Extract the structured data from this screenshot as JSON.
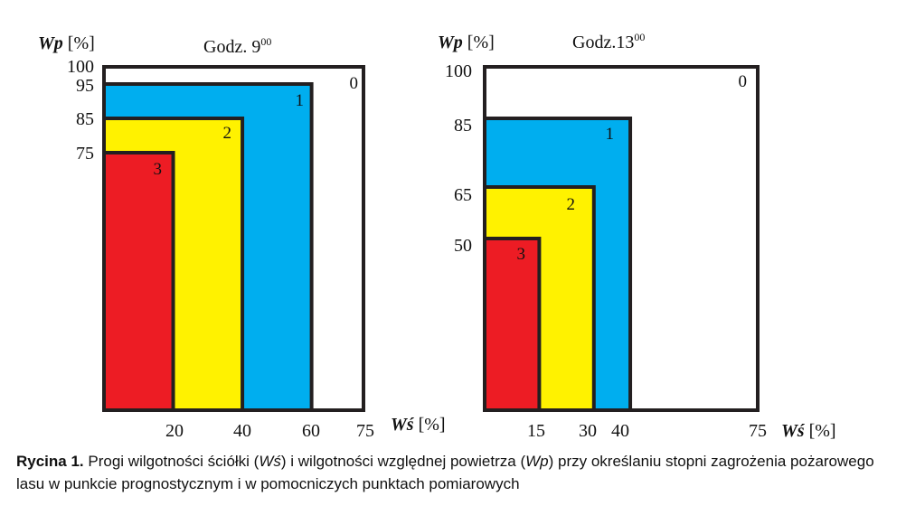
{
  "chart_data": [
    {
      "type": "area",
      "title": "Godz. 9",
      "title_sup": "00",
      "ylabel": {
        "symbol": "Wp",
        "unit": "[%]"
      },
      "xlabel": {
        "symbol": "Wś",
        "unit": "[%]"
      },
      "xlim": [
        0,
        75
      ],
      "ylim": [
        0,
        100
      ],
      "yticks": [
        "100",
        "95",
        "85",
        "75"
      ],
      "xticks": [
        "20",
        "40",
        "60",
        "75"
      ],
      "zones": [
        {
          "label": "0",
          "ws_max": 75,
          "wp_min": 100,
          "color": "#ffffff"
        },
        {
          "label": "1",
          "ws_max": 60,
          "wp_min": 95,
          "color": "#00aeef"
        },
        {
          "label": "2",
          "ws_max": 40,
          "wp_min": 85,
          "color": "#fff200"
        },
        {
          "label": "3",
          "ws_max": 20,
          "wp_min": 75,
          "color": "#ed1c24"
        }
      ]
    },
    {
      "type": "area",
      "title": "Godz.13",
      "title_sup": "00",
      "ylabel": {
        "symbol": "Wp",
        "unit": "[%]"
      },
      "xlabel": {
        "symbol": "Wś",
        "unit": "[%]"
      },
      "xlim": [
        0,
        75
      ],
      "ylim": [
        0,
        100
      ],
      "yticks": [
        "100",
        "85",
        "65",
        "50"
      ],
      "xticks": [
        "15",
        "30",
        "40",
        "75"
      ],
      "zones": [
        {
          "label": "0",
          "ws_max": 75,
          "wp_min": 100,
          "color": "#ffffff"
        },
        {
          "label": "1",
          "ws_max": 40,
          "wp_min": 85,
          "color": "#00aeef"
        },
        {
          "label": "2",
          "ws_max": 30,
          "wp_min": 65,
          "color": "#fff200"
        },
        {
          "label": "3",
          "ws_max": 15,
          "wp_min": 50,
          "color": "#ed1c24"
        }
      ]
    }
  ],
  "caption": {
    "label": "Rycina 1.",
    "t1": " Progi wilgotności ściółki (",
    "ws": "Wś",
    "t2": ") i wilgotności względnej powietrza (",
    "wp": "Wp",
    "t3": ") przy określaniu stopni zagrożenia pożarowego lasu w punkcie prognostycznym i w pomocniczych punktach pomiarowych"
  }
}
